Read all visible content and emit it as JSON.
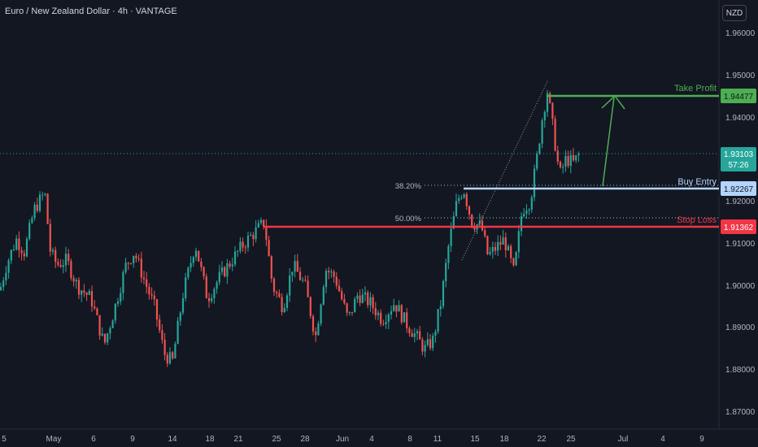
{
  "header": {
    "title": "Euro / New Zealand Dollar · 4h · VANTAGE",
    "currency_button": "NZD"
  },
  "colors": {
    "background": "#131722",
    "up": "#26a69a",
    "down": "#ef5350",
    "take_profit": "#4caf50",
    "buy_entry": "#b3d4fc",
    "stop_loss": "#f23645",
    "grid_text": "#b2b5be"
  },
  "axis": {
    "y_ticks": [
      "1.96000",
      "1.95000",
      "1.94000",
      "1.92000",
      "1.91000",
      "1.90000",
      "1.89000",
      "1.88000",
      "1.87000"
    ],
    "x_ticks": [
      "5",
      "May",
      "6",
      "9",
      "14",
      "18",
      "21",
      "25",
      "28",
      "Jun",
      "4",
      "8",
      "11",
      "15",
      "18",
      "22",
      "25",
      "Jul",
      "4",
      "9"
    ]
  },
  "price_tags": {
    "take_profit": "1.94477",
    "current": "1.93103",
    "countdown": "57:26",
    "buy_entry": "1.92267",
    "stop_loss": "1.91362"
  },
  "labels": {
    "take_profit": "Take Profit",
    "buy_entry": "Buy Entry",
    "stop_loss": "Stop Loss",
    "fib_382": "38.20%",
    "fib_50": "50.00%"
  },
  "chart_data": {
    "type": "candlestick",
    "pair": "EUR/NZD",
    "timeframe": "4h",
    "ylim": [
      1.866,
      1.966
    ],
    "levels": {
      "take_profit": 1.94477,
      "buy_entry": 1.92267,
      "stop_loss": 1.91362,
      "current": 1.93103,
      "fib_382": 1.923,
      "fib_50": 1.9153
    },
    "price_path": [
      [
        0,
        1.899
      ],
      [
        8,
        1.905
      ],
      [
        20,
        1.911
      ],
      [
        30,
        1.908
      ],
      [
        42,
        1.918
      ],
      [
        55,
        1.922
      ],
      [
        62,
        1.908
      ],
      [
        70,
        1.905
      ],
      [
        82,
        1.906
      ],
      [
        95,
        1.9
      ],
      [
        112,
        1.897
      ],
      [
        128,
        1.886
      ],
      [
        140,
        1.894
      ],
      [
        155,
        1.905
      ],
      [
        165,
        1.908
      ],
      [
        178,
        1.901
      ],
      [
        190,
        1.895
      ],
      [
        202,
        1.884
      ],
      [
        212,
        1.882
      ],
      [
        225,
        1.898
      ],
      [
        240,
        1.91
      ],
      [
        255,
        1.897
      ],
      [
        270,
        1.902
      ],
      [
        285,
        1.906
      ],
      [
        300,
        1.91
      ],
      [
        315,
        1.913
      ],
      [
        325,
        1.915
      ],
      [
        335,
        1.9
      ],
      [
        348,
        1.895
      ],
      [
        360,
        1.905
      ],
      [
        375,
        1.9
      ],
      [
        388,
        1.888
      ],
      [
        400,
        1.904
      ],
      [
        412,
        1.902
      ],
      [
        428,
        1.892
      ],
      [
        440,
        1.898
      ],
      [
        455,
        1.896
      ],
      [
        470,
        1.892
      ],
      [
        485,
        1.896
      ],
      [
        500,
        1.891
      ],
      [
        512,
        1.888
      ],
      [
        522,
        1.885
      ],
      [
        532,
        1.887
      ],
      [
        542,
        1.896
      ],
      [
        552,
        1.91
      ],
      [
        562,
        1.92
      ],
      [
        570,
        1.923
      ],
      [
        580,
        1.915
      ],
      [
        592,
        1.914
      ],
      [
        600,
        1.907
      ],
      [
        610,
        1.909
      ],
      [
        620,
        1.911
      ],
      [
        632,
        1.903
      ],
      [
        642,
        1.918
      ],
      [
        652,
        1.92
      ],
      [
        660,
        1.93
      ],
      [
        667,
        1.94
      ],
      [
        673,
        1.946
      ],
      [
        680,
        1.937
      ],
      [
        688,
        1.926
      ],
      [
        696,
        1.93
      ],
      [
        705,
        1.929
      ],
      [
        712,
        1.931
      ]
    ]
  }
}
